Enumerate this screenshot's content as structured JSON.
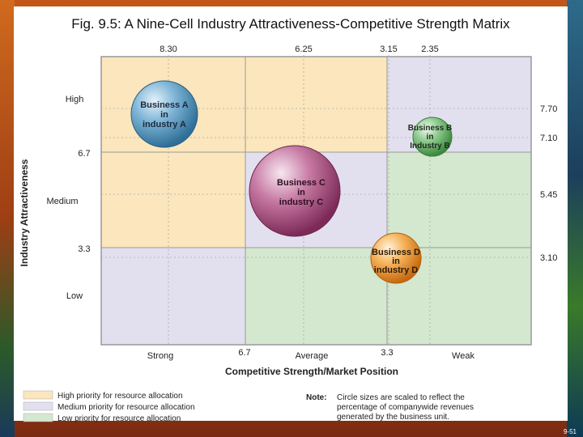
{
  "title": "Fig. 9.5: A Nine-Cell Industry Attractiveness-Competitive Strength Matrix",
  "axes": {
    "y_title": "Industry Attractiveness",
    "x_title": "Competitive Strength/Market Position",
    "y_rows": [
      "High",
      "Medium",
      "Low"
    ],
    "x_cols": [
      "Strong",
      "Average",
      "Weak"
    ],
    "y_left_ticks": [
      "6.7",
      "3.3"
    ],
    "x_bottom_ticks": [
      "6.7",
      "3.3"
    ],
    "top_values": [
      "8.30",
      "6.25",
      "3.15",
      "2.35"
    ],
    "right_values": [
      "7.70",
      "7.10",
      "5.45",
      "3.10"
    ]
  },
  "businesses": [
    {
      "lines": [
        "Business A",
        "in",
        "industry A"
      ],
      "color": "#5f9ec4"
    },
    {
      "lines": [
        "Business B",
        "in",
        "Industry B"
      ],
      "color": "#7fc07f"
    },
    {
      "lines": [
        "Business C",
        "in",
        "industry C"
      ],
      "color": "#b85a8a"
    },
    {
      "lines": [
        "Business D",
        "in",
        "industry D"
      ],
      "color": "#f0a23c"
    }
  ],
  "legend": [
    {
      "label": "High priority for resource allocation",
      "color": "#fbe6bd"
    },
    {
      "label": "Medium priority for resource allocation",
      "color": "#e2e0ef"
    },
    {
      "label": "Low priority for resource allocation",
      "color": "#d4e8cf"
    }
  ],
  "note": {
    "label": "Note:",
    "lines": [
      "Circle sizes are scaled to reflect the",
      "percentage of companywide revenues",
      "generated by the business unit."
    ]
  },
  "page_number": "9-51",
  "colors": {
    "high": "#fbe6bd",
    "medium": "#e2e0ef",
    "low": "#d4e8cf"
  }
}
